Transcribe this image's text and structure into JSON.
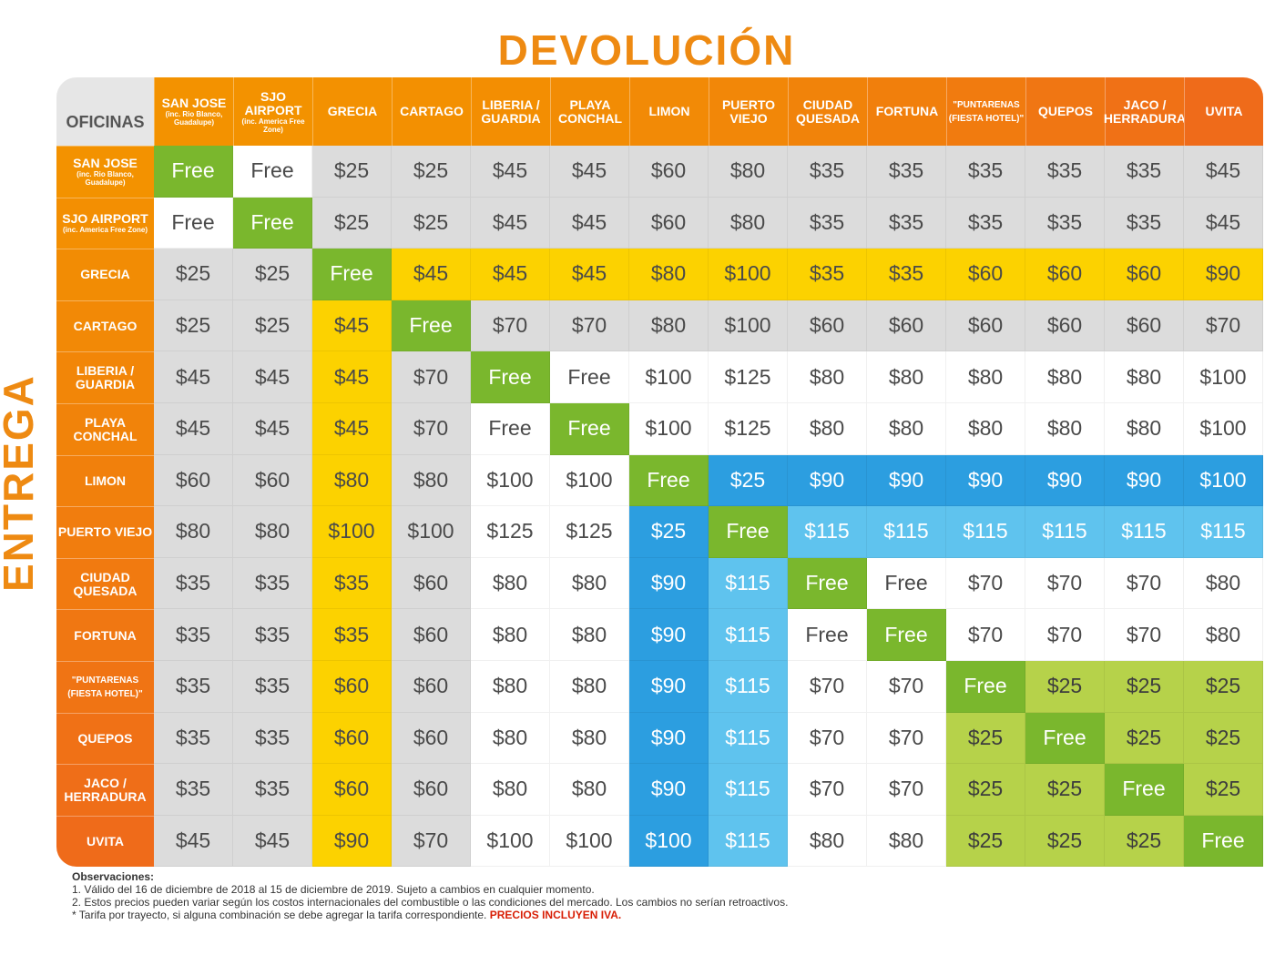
{
  "title_top": "DEVOLUCIÓN",
  "title_side": "ENTREGA",
  "corner_label": "OFICINAS",
  "locations": [
    {
      "label": "SAN JOSE",
      "sub": "(inc. Rio Blanco, Guadalupe)"
    },
    {
      "label": "SJO AIRPORT",
      "sub": "(inc. America Free Zone)"
    },
    {
      "label": "GRECIA",
      "sub": ""
    },
    {
      "label": "CARTAGO",
      "sub": ""
    },
    {
      "label": "LIBERIA / GUARDIA",
      "sub": ""
    },
    {
      "label": "PLAYA CONCHAL",
      "sub": ""
    },
    {
      "label": "LIMON",
      "sub": ""
    },
    {
      "label": "PUERTO VIEJO",
      "sub": ""
    },
    {
      "label": "CIUDAD QUESADA",
      "sub": ""
    },
    {
      "label": "FORTUNA",
      "sub": ""
    },
    {
      "label": "\"PUNTARENAS (FIESTA HOTEL)\"",
      "sub": ""
    },
    {
      "label": "QUEPOS",
      "sub": ""
    },
    {
      "label": "JACO / HERRADURA",
      "sub": ""
    },
    {
      "label": "UVITA",
      "sub": ""
    }
  ],
  "rows": [
    [
      "Free",
      "Free",
      "$25",
      "$25",
      "$45",
      "$45",
      "$60",
      "$80",
      "$35",
      "$35",
      "$35",
      "$35",
      "$35",
      "$45"
    ],
    [
      "Free",
      "Free",
      "$25",
      "$25",
      "$45",
      "$45",
      "$60",
      "$80",
      "$35",
      "$35",
      "$35",
      "$35",
      "$35",
      "$45"
    ],
    [
      "$25",
      "$25",
      "Free",
      "$45",
      "$45",
      "$45",
      "$80",
      "$100",
      "$35",
      "$35",
      "$60",
      "$60",
      "$60",
      "$90"
    ],
    [
      "$25",
      "$25",
      "$45",
      "Free",
      "$70",
      "$70",
      "$80",
      "$100",
      "$60",
      "$60",
      "$60",
      "$60",
      "$60",
      "$70"
    ],
    [
      "$45",
      "$45",
      "$45",
      "$70",
      "Free",
      "Free",
      "$100",
      "$125",
      "$80",
      "$80",
      "$80",
      "$80",
      "$80",
      "$100"
    ],
    [
      "$45",
      "$45",
      "$45",
      "$70",
      "Free",
      "Free",
      "$100",
      "$125",
      "$80",
      "$80",
      "$80",
      "$80",
      "$80",
      "$100"
    ],
    [
      "$60",
      "$60",
      "$80",
      "$80",
      "$100",
      "$100",
      "Free",
      "$25",
      "$90",
      "$90",
      "$90",
      "$90",
      "$90",
      "$100"
    ],
    [
      "$80",
      "$80",
      "$100",
      "$100",
      "$125",
      "$125",
      "$25",
      "Free",
      "$115",
      "$115",
      "$115",
      "$115",
      "$115",
      "$115"
    ],
    [
      "$35",
      "$35",
      "$35",
      "$60",
      "$80",
      "$80",
      "$90",
      "$115",
      "Free",
      "Free",
      "$70",
      "$70",
      "$70",
      "$80"
    ],
    [
      "$35",
      "$35",
      "$35",
      "$60",
      "$80",
      "$80",
      "$90",
      "$115",
      "Free",
      "Free",
      "$70",
      "$70",
      "$70",
      "$80"
    ],
    [
      "$35",
      "$35",
      "$60",
      "$60",
      "$80",
      "$80",
      "$90",
      "$115",
      "$70",
      "$70",
      "Free",
      "$25",
      "$25",
      "$25"
    ],
    [
      "$35",
      "$35",
      "$60",
      "$60",
      "$80",
      "$80",
      "$90",
      "$115",
      "$70",
      "$70",
      "$25",
      "Free",
      "$25",
      "$25"
    ],
    [
      "$35",
      "$35",
      "$60",
      "$60",
      "$80",
      "$80",
      "$90",
      "$115",
      "$70",
      "$70",
      "$25",
      "$25",
      "Free",
      "$25"
    ],
    [
      "$45",
      "$45",
      "$90",
      "$70",
      "$100",
      "$100",
      "$100",
      "$115",
      "$80",
      "$80",
      "$25",
      "$25",
      "$25",
      "Free"
    ]
  ],
  "colors": {
    "header_orange": "#f39200",
    "header_orange_end": "#ef6b1a",
    "gray": "#dcdcdc",
    "white": "#ffffff",
    "yellow": "#fcd200",
    "blue_dark": "#2c9ee0",
    "blue_light": "#5fc3ee",
    "lime": "#b6d24a",
    "green_free": "#7ab72d"
  },
  "notes": {
    "heading": "Observaciones:",
    "line1": "1. Válido del 16 de diciembre de 2018 al 15 de diciembre de 2019. Sujeto a cambios en cualquier momento.",
    "line2": "2. Estos precios pueden variar según los costos internacionales del combustible o las condiciones del mercado. Los cambios no serían retroactivos.",
    "line3": "* Tarifa por trayecto, si alguna combinación se debe agregar la tarifa correspondiente.",
    "line3_red": "PRECIOS INCLUYEN IVA."
  }
}
